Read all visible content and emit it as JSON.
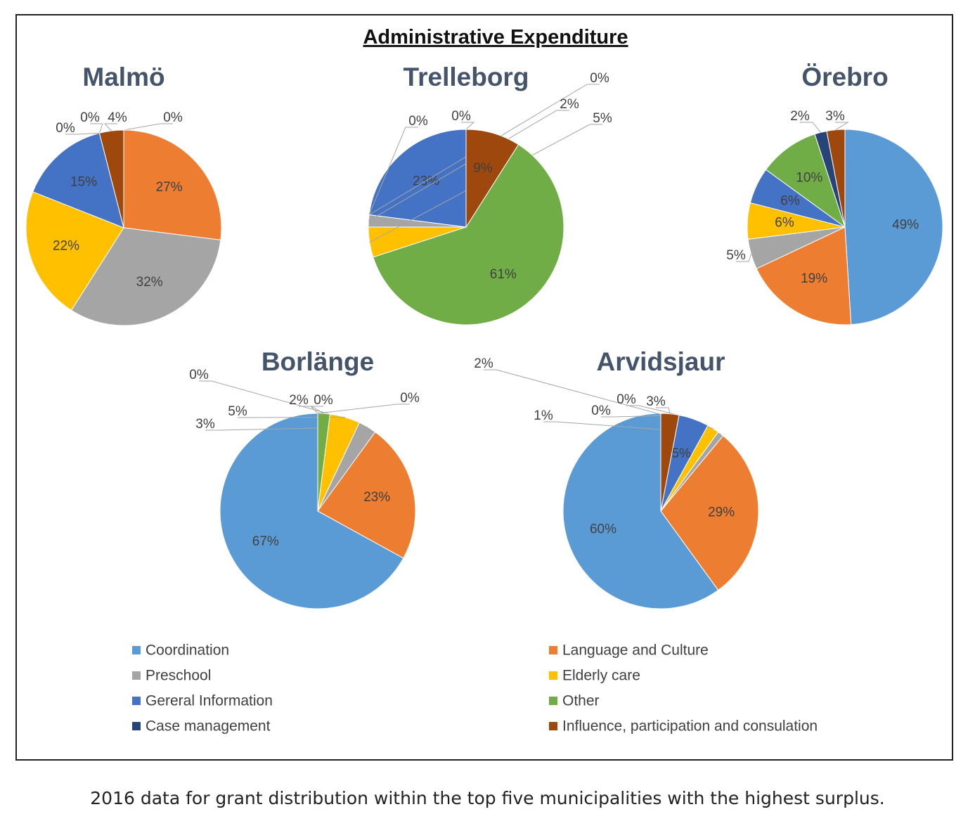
{
  "title": "Administrative Expenditure",
  "caption": "2016 data for grant distribution within the top five municipalities with the highest surplus.",
  "colors": {
    "Coordination": "#5b9bd5",
    "Language and Culture": "#ed7d31",
    "Preschool": "#a5a5a5",
    "Elderly care": "#ffc000",
    "Gereral Information": "#4472c4",
    "Other": "#70ad47",
    "Case management": "#264478",
    "Influence, participation and consulation": "#9e480e"
  },
  "legend": [
    "Coordination",
    "Language and Culture",
    "Preschool",
    "Elderly care",
    "Gereral Information",
    "Other",
    "Case management",
    "Influence, participation and consulation"
  ],
  "chart_data": [
    {
      "type": "pie",
      "title": "Malmö",
      "categories": [
        "Coordination",
        "Language and Culture",
        "Preschool",
        "Elderly care",
        "Gereral Information",
        "Other",
        "Case management",
        "Influence, participation and consulation"
      ],
      "values": [
        0,
        27,
        32,
        22,
        15,
        0,
        0,
        4
      ],
      "labels": [
        "0%",
        "27%",
        "32%",
        "22%",
        "15%",
        "0%",
        "0%",
        "4%"
      ]
    },
    {
      "type": "pie",
      "title": "Trelleborg",
      "categories": [
        "Coordination",
        "Gereral Information",
        "Case management",
        "Language and Culture",
        "Preschool",
        "Elderly care",
        "Other",
        "Influence, participation and consulation"
      ],
      "values": [
        0,
        23,
        0,
        0,
        2,
        5,
        61,
        9
      ],
      "labels": [
        "0%",
        "23%",
        "0%",
        "0%",
        "2%",
        "5%",
        "61%",
        "9%"
      ]
    },
    {
      "type": "pie",
      "title": "Örebro",
      "categories": [
        "Coordination",
        "Language and Culture",
        "Preschool",
        "Elderly care",
        "Gereral Information",
        "Other",
        "Case management",
        "Influence, participation and consulation"
      ],
      "values": [
        49,
        19,
        5,
        6,
        6,
        10,
        2,
        3
      ],
      "labels": [
        "49%",
        "19%",
        "5%",
        "6%",
        "6%",
        "10%",
        "2%",
        "3%"
      ]
    },
    {
      "type": "pie",
      "title": "Borlänge",
      "categories": [
        "Coordination",
        "Language and Culture",
        "Preschool",
        "Elderly care",
        "Gereral Information",
        "Other",
        "Case management",
        "Influence, participation and consulation"
      ],
      "values": [
        67,
        23,
        3,
        5,
        0,
        2,
        0,
        0
      ],
      "labels": [
        "67%",
        "23%",
        "3%",
        "5%",
        "0%",
        "2%",
        "0%",
        "0%"
      ]
    },
    {
      "type": "pie",
      "title": "Arvidsjaur",
      "categories": [
        "Coordination",
        "Language and Culture",
        "Preschool",
        "Elderly care",
        "Gereral Information",
        "Other",
        "Case management",
        "Influence, participation and consulation"
      ],
      "values": [
        60,
        29,
        1,
        2,
        5,
        0,
        0,
        3
      ],
      "labels": [
        "60%",
        "29%",
        "1%",
        "2%",
        "5%",
        "0%",
        "0%",
        "3%"
      ]
    }
  ]
}
